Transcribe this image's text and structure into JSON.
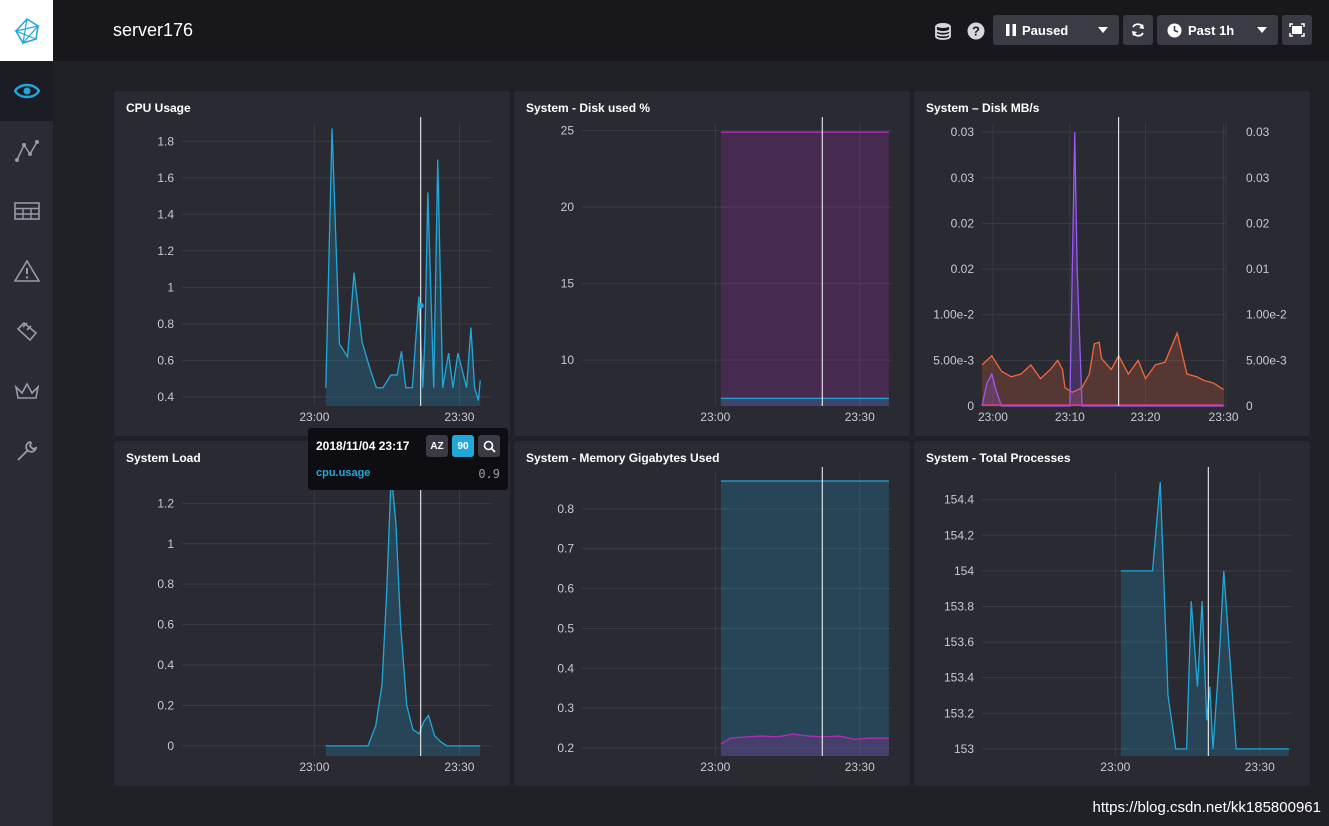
{
  "header": {
    "title": "server176",
    "paused_label": "Paused",
    "time_range_label": "Past 1h",
    "icons": [
      "database-icon",
      "help-icon",
      "pause-icon",
      "refresh-icon",
      "clock-icon",
      "fullscreen-icon"
    ]
  },
  "sidebar": {
    "items": [
      {
        "icon": "eye-icon",
        "active": true
      },
      {
        "icon": "graph-icon",
        "active": false
      },
      {
        "icon": "table-icon",
        "active": false
      },
      {
        "icon": "alert-icon",
        "active": false
      },
      {
        "icon": "wrench-plugin-icon",
        "active": false
      },
      {
        "icon": "crown-icon",
        "active": false
      },
      {
        "icon": "wrench-icon",
        "active": false
      }
    ]
  },
  "colors": {
    "cyan": "#22a8d8",
    "magenta": "#b02fb7",
    "orange": "#f2683c",
    "purple": "#9b59f0",
    "pink": "#ee3a8c",
    "panel": "#292a32"
  },
  "tooltip": {
    "time": "2018/11/04 23:17",
    "series": "cpu.usage",
    "value": "0.9",
    "sort_az_label": "AZ",
    "sort_90_label": "90"
  },
  "watermark": "https://blog.csdn.net/kk185800961",
  "chart_data": [
    {
      "id": "cpu",
      "title": "CPU Usage",
      "type": "area",
      "xlim": [
        0,
        100
      ],
      "ylim": [
        0.35,
        1.9
      ],
      "yticks": [
        "1.8",
        "1.6",
        "1.4",
        "1.2",
        "1",
        "0.8",
        "0.6",
        "0.4"
      ],
      "ytick_values": [
        1.8,
        1.6,
        1.4,
        1.2,
        1,
        0.8,
        0.6,
        0.4
      ],
      "xticks": [
        "23:00",
        "23:30"
      ],
      "xtick_values": [
        42.7,
        89.5
      ],
      "cursor_x": 77,
      "series": [
        {
          "color": "#22a8d8",
          "x": [
            46.4,
            48.4,
            50.8,
            53.4,
            55.5,
            58.1,
            60.7,
            62.7,
            64.8,
            67.4,
            69.4,
            70.8,
            72.2,
            74.3,
            76.4,
            77.7,
            78.4,
            79.3,
            81.2,
            82.5,
            84.1,
            86.0,
            87.4,
            89.0,
            91.8,
            93.2,
            94.4,
            95.6,
            96.2
          ],
          "y": [
            0.45,
            1.87,
            0.69,
            0.62,
            1.08,
            0.7,
            0.55,
            0.45,
            0.45,
            0.52,
            0.52,
            0.65,
            0.45,
            0.45,
            0.95,
            0.45,
            0.75,
            1.52,
            0.45,
            1.7,
            0.45,
            0.64,
            0.45,
            0.64,
            0.45,
            0.78,
            0.45,
            0.38,
            0.49
          ]
        }
      ]
    },
    {
      "id": "disk_pct",
      "title": "System - Disk used %",
      "type": "area",
      "xlim": [
        0,
        100
      ],
      "ylim": [
        7,
        25.5
      ],
      "yticks": [
        "25",
        "20",
        "15",
        "10"
      ],
      "ytick_values": [
        25,
        20,
        15,
        10
      ],
      "xticks": [
        "23:00",
        "23:30"
      ],
      "xtick_values": [
        43.0,
        89.6
      ],
      "cursor_x": 77.5,
      "series": [
        {
          "color": "#b02fb7",
          "x": [
            44.8,
            99.0
          ],
          "y": [
            24.9,
            24.9
          ]
        },
        {
          "color": "#22a8d8",
          "x": [
            44.8,
            99.0
          ],
          "y": [
            7.5,
            7.5
          ]
        }
      ]
    },
    {
      "id": "disk_mbs",
      "title": "System – Disk MB/s",
      "type": "area",
      "xlim": [
        0,
        100
      ],
      "ylim": [
        0,
        0.031
      ],
      "yticks": [
        "0.03",
        "0.03",
        "0.02",
        "0.02",
        "1.00e-2",
        "5.00e-3",
        "0"
      ],
      "ytick_values": [
        0.03,
        0.025,
        0.02,
        0.015,
        0.01,
        0.005,
        0
      ],
      "yticks_right": [
        "0.03",
        "0.03",
        "0.02",
        "0.01",
        "1.00e-2",
        "5.00e-3",
        "0"
      ],
      "xticks": [
        "23:00",
        "23:10",
        "23:20",
        "23:30"
      ],
      "xtick_values": [
        4.5,
        36.0,
        67.0,
        99.0
      ],
      "cursor_x": 56,
      "series": [
        {
          "color": "#f2683c",
          "x": [
            0,
            4,
            8,
            12,
            16,
            20,
            24,
            28,
            31,
            33,
            34,
            37,
            41,
            44,
            46,
            48,
            49,
            53,
            56,
            60,
            64,
            67,
            71,
            75,
            80,
            84,
            88,
            91,
            95,
            99
          ],
          "y": [
            0.0045,
            0.0055,
            0.0038,
            0.0032,
            0.0035,
            0.0045,
            0.003,
            0.004,
            0.005,
            0.004,
            0.002,
            0.0015,
            0.002,
            0.0035,
            0.0068,
            0.007,
            0.0052,
            0.004,
            0.0055,
            0.0035,
            0.005,
            0.003,
            0.0045,
            0.0048,
            0.008,
            0.0035,
            0.0032,
            0.0028,
            0.0025,
            0.0018
          ]
        },
        {
          "color": "#9b59f0",
          "x": [
            0,
            2,
            4,
            6,
            8,
            30,
            36,
            38,
            39,
            41,
            45,
            99
          ],
          "y": [
            0,
            0.0025,
            0.0035,
            0.0015,
            0,
            0,
            0,
            0.03,
            0.015,
            0,
            0,
            0
          ]
        },
        {
          "color": "#ee3a8c",
          "x": [
            0,
            99
          ],
          "y": [
            0.0001,
            0.0001
          ]
        }
      ]
    },
    {
      "id": "load",
      "title": "System Load",
      "type": "area",
      "xlim": [
        0,
        100
      ],
      "ylim": [
        -0.05,
        1.35
      ],
      "yticks": [
        "1.2",
        "1",
        "0.8",
        "0.6",
        "0.4",
        "0.2",
        "0"
      ],
      "ytick_values": [
        1.2,
        1.0,
        0.8,
        0.6,
        0.4,
        0.2,
        0
      ],
      "xticks": [
        "23:00",
        "23:30"
      ],
      "xtick_values": [
        42.7,
        89.5
      ],
      "cursor_x": 77,
      "series": [
        {
          "color": "#22a8d8",
          "x": [
            46.4,
            60,
            62.5,
            64.5,
            66,
            67.5,
            69,
            70.5,
            72.5,
            74.5,
            76.5,
            78,
            79.5,
            81.5,
            83.5,
            85.5,
            88,
            96.2
          ],
          "y": [
            0,
            0,
            0.1,
            0.3,
            0.75,
            1.35,
            1.1,
            0.6,
            0.2,
            0.08,
            0.06,
            0.12,
            0.15,
            0.05,
            0.02,
            0,
            0,
            0
          ]
        }
      ]
    },
    {
      "id": "memory",
      "title": "System - Memory Gigabytes Used",
      "type": "area",
      "xlim": [
        0,
        100
      ],
      "ylim": [
        0.18,
        0.89
      ],
      "yticks": [
        "0.8",
        "0.7",
        "0.6",
        "0.5",
        "0.4",
        "0.3",
        "0.2"
      ],
      "ytick_values": [
        0.8,
        0.7,
        0.6,
        0.5,
        0.4,
        0.3,
        0.2
      ],
      "xticks": [
        "23:00",
        "23:30"
      ],
      "xtick_values": [
        43.0,
        89.6
      ],
      "cursor_x": 77.5,
      "series": [
        {
          "color": "#22a8d8",
          "x": [
            44.8,
            99.0
          ],
          "y": [
            0.87,
            0.87
          ]
        },
        {
          "color": "#b02fb7",
          "x": [
            44.8,
            48,
            53,
            58,
            63,
            68,
            73,
            78,
            83,
            88,
            93,
            99
          ],
          "y": [
            0.21,
            0.225,
            0.228,
            0.23,
            0.228,
            0.235,
            0.23,
            0.228,
            0.23,
            0.222,
            0.225,
            0.225
          ]
        }
      ]
    },
    {
      "id": "processes",
      "title": "System - Total Processes",
      "type": "area",
      "xlim": [
        0,
        100
      ],
      "ylim": [
        152.96,
        154.55
      ],
      "yticks": [
        "154.4",
        "154.2",
        "154",
        "153.8",
        "153.6",
        "153.4",
        "153.2",
        "153"
      ],
      "ytick_values": [
        154.4,
        154.2,
        154.0,
        153.8,
        153.6,
        153.4,
        153.2,
        153.0
      ],
      "xticks": [
        "23:00",
        "23:30"
      ],
      "xtick_values": [
        43.0,
        89.6
      ],
      "cursor_x": 73,
      "series": [
        {
          "color": "#22a8d8",
          "x": [
            44.8,
            55,
            57.5,
            60,
            62.5,
            66,
            67.5,
            69.5,
            71,
            72.5,
            73.5,
            74.5,
            76.5,
            78,
            80,
            82,
            84.5,
            99.0
          ],
          "y": [
            154.0,
            154.0,
            154.5,
            153.3,
            153.0,
            153.0,
            153.83,
            153.35,
            153.83,
            153.16,
            153.35,
            153.0,
            153.5,
            154.0,
            153.5,
            153.0,
            153.0,
            153.0
          ]
        }
      ]
    }
  ]
}
